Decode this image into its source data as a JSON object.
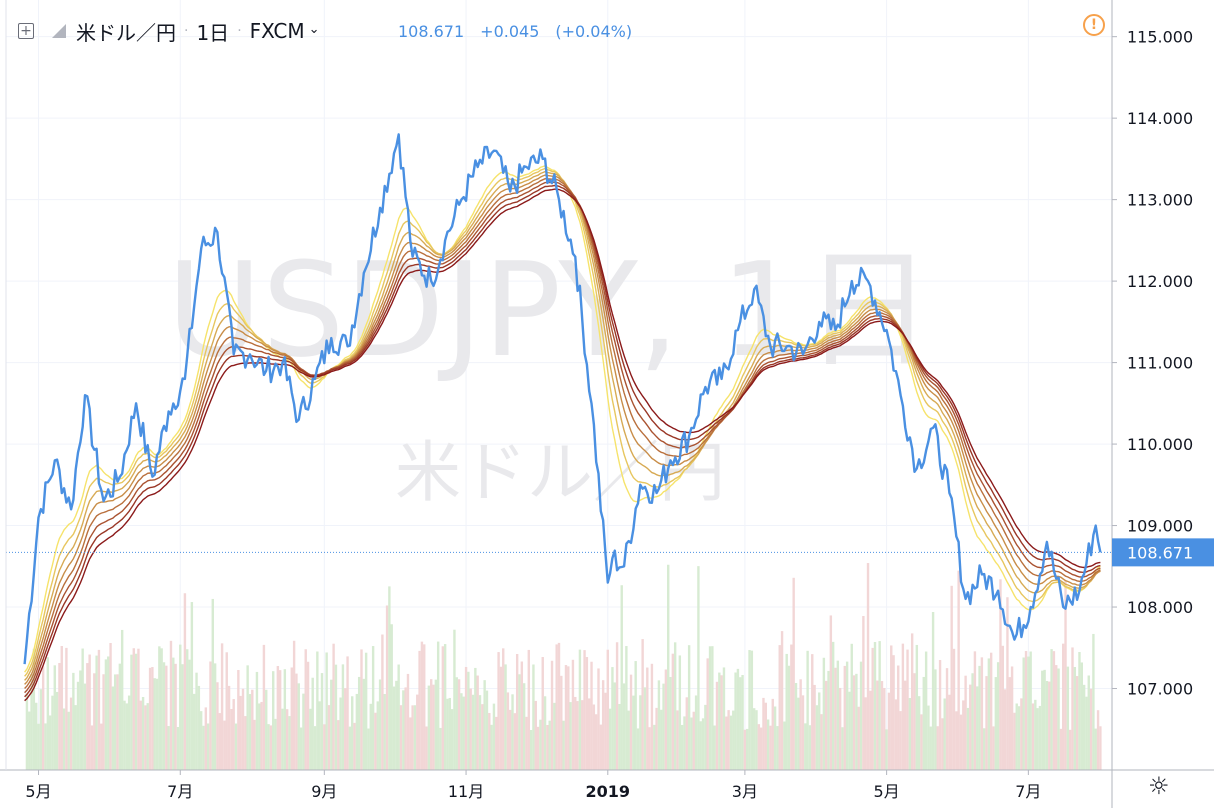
{
  "header": {
    "symbol": "米ドル／円",
    "interval": "1日",
    "exchange": "FXCM",
    "last": "108.671",
    "change": "+0.045",
    "change_pct": "(+0.04%)"
  },
  "icons": {
    "expand": "plus-square-icon",
    "flag": "flag-icon",
    "exchange_menu": "chevron-down-icon",
    "warning": "exclamation-circle-icon",
    "settings": "gear-icon"
  },
  "colors": {
    "price": "#4a90e2",
    "ribbon_from": "#f6e36b",
    "ribbon_to": "#8b1a1a",
    "volume_up": "#d7ebd2",
    "volume_down": "#f2d6d6",
    "last_price_bg": "#4a90e2",
    "warning": "#f7a14b"
  },
  "watermark": {
    "symbol": "USDJPY, 1日",
    "name": "米ドル／円"
  },
  "chart_data": {
    "type": "line",
    "title": "",
    "xlabel": "",
    "ylabel": "",
    "ylim": [
      106.0,
      115.45
    ],
    "y_ticks": [
      "107.000",
      "108.000",
      "109.000",
      "110.000",
      "111.000",
      "112.000",
      "113.000",
      "114.000",
      "115.000"
    ],
    "x_ticks": [
      {
        "label": "5月",
        "x": "2018-05"
      },
      {
        "label": "7月",
        "x": "2018-07"
      },
      {
        "label": "9月",
        "x": "2018-09"
      },
      {
        "label": "11月",
        "x": "2018-11"
      },
      {
        "label": "2019",
        "x": "2019-01"
      },
      {
        "label": "3月",
        "x": "2019-03"
      },
      {
        "label": "5月",
        "x": "2019-05"
      },
      {
        "label": "7月",
        "x": "2019-07"
      }
    ],
    "last_price_label": "108.671",
    "grid": true,
    "legend": "none",
    "x": [
      "2018-04-25",
      "2018-05-01",
      "2018-05-08",
      "2018-05-15",
      "2018-05-21",
      "2018-05-29",
      "2018-06-05",
      "2018-06-12",
      "2018-06-19",
      "2018-06-26",
      "2018-07-03",
      "2018-07-10",
      "2018-07-17",
      "2018-07-24",
      "2018-07-31",
      "2018-08-07",
      "2018-08-14",
      "2018-08-21",
      "2018-08-28",
      "2018-09-04",
      "2018-09-11",
      "2018-09-18",
      "2018-09-25",
      "2018-10-03",
      "2018-10-09",
      "2018-10-17",
      "2018-10-23",
      "2018-10-30",
      "2018-11-06",
      "2018-11-13",
      "2018-11-20",
      "2018-11-27",
      "2018-12-04",
      "2018-12-11",
      "2018-12-18",
      "2018-12-25",
      "2019-01-01",
      "2019-01-03",
      "2019-01-08",
      "2019-01-15",
      "2019-01-22",
      "2019-01-28",
      "2019-02-05",
      "2019-02-12",
      "2019-02-19",
      "2019-02-26",
      "2019-03-05",
      "2019-03-12",
      "2019-03-19",
      "2019-03-26",
      "2019-04-02",
      "2019-04-09",
      "2019-04-16",
      "2019-04-23",
      "2019-05-01",
      "2019-05-07",
      "2019-05-14",
      "2019-05-21",
      "2019-05-28",
      "2019-06-04",
      "2019-06-11",
      "2019-06-18",
      "2019-06-25",
      "2019-07-02",
      "2019-07-09",
      "2019-07-16",
      "2019-07-23",
      "2019-07-30",
      "2019-08-01"
    ],
    "series": [
      {
        "values": [
          107.3,
          109.1,
          109.8,
          109.2,
          110.6,
          109.3,
          109.6,
          110.5,
          109.6,
          110.4,
          110.8,
          112.4,
          112.6,
          111.1,
          111.1,
          110.9,
          111.0,
          110.3,
          110.8,
          111.3,
          111.2,
          112.1,
          112.9,
          113.8,
          112.3,
          112.0,
          112.5,
          113.0,
          113.4,
          113.6,
          113.1,
          113.4,
          113.5,
          113.0,
          112.3,
          110.5,
          108.3,
          108.6,
          108.5,
          109.5,
          109.4,
          109.8,
          110.1,
          110.7,
          110.8,
          111.4,
          111.9,
          111.2,
          111.2,
          111.1,
          111.5,
          111.4,
          112.0,
          112.0,
          111.4,
          110.6,
          109.7,
          110.2,
          109.4,
          108.1,
          108.4,
          108.2,
          107.6,
          108.0,
          108.8,
          108.0,
          108.2,
          109.0,
          108.67
        ]
      }
    ]
  }
}
